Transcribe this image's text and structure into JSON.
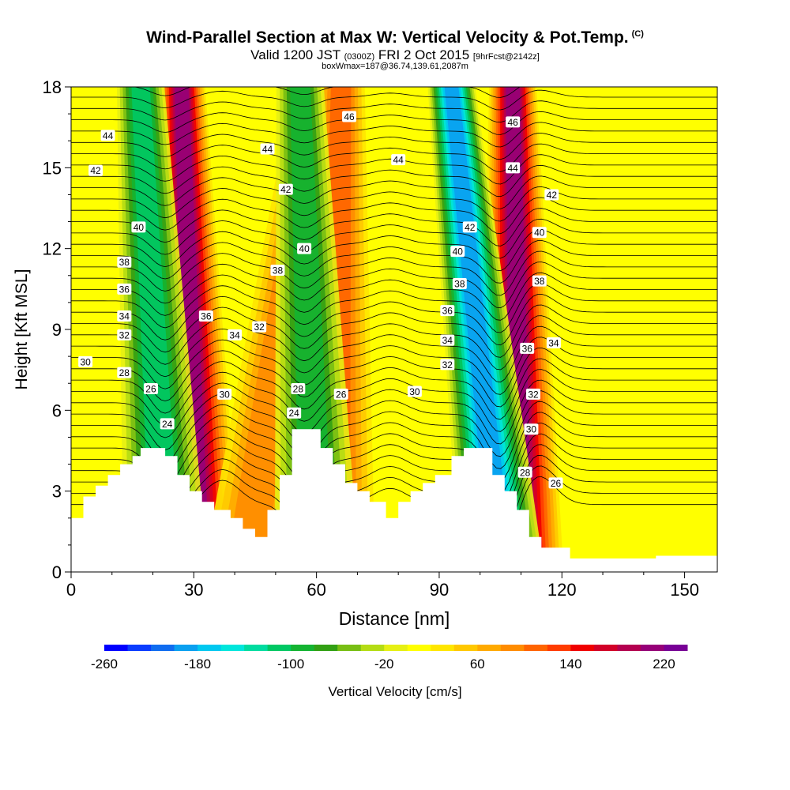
{
  "header": {
    "title": "Wind-Parallel Section at Max W: Vertical Velocity & Pot.Temp.",
    "copyright": "(C)",
    "valid_main": "Valid 1200 JST",
    "valid_z": "(0300Z)",
    "valid_date": "FRI 2 Oct 2015",
    "forecast": "[9hrFcst@2142z]",
    "box_info": "boxWmax=187@36.74,139.61,2087m"
  },
  "chart_data": {
    "type": "heatmap",
    "xlabel": "Distance [nm]",
    "ylabel": "Height [Kft MSL]",
    "x_ticks": [
      0,
      30,
      60,
      90,
      120,
      150
    ],
    "y_ticks": [
      0,
      3,
      6,
      9,
      12,
      15,
      18
    ],
    "xlim": [
      0,
      158
    ],
    "ylim": [
      0,
      18
    ],
    "colorbar": {
      "label": "Vertical Velocity [cm/s]",
      "ticks": [
        -260,
        -180,
        -100,
        -20,
        60,
        140,
        220
      ],
      "min": -260,
      "max": 240,
      "step": 20,
      "colors": [
        "#0000ff",
        "#0a3cff",
        "#0f6cf0",
        "#0aa0f0",
        "#00c8f0",
        "#00e6dc",
        "#00dca0",
        "#00c864",
        "#14b432",
        "#32a014",
        "#78be14",
        "#b4dc14",
        "#e6f014",
        "#ffff00",
        "#ffe600",
        "#ffc800",
        "#ffaa00",
        "#ff8c00",
        "#ff6400",
        "#ff3c00",
        "#f00000",
        "#d20028",
        "#b40050",
        "#960078",
        "#780096"
      ]
    },
    "terrain_kft": [
      [
        0,
        2.0
      ],
      [
        3,
        2.0
      ],
      [
        3,
        2.8
      ],
      [
        6,
        2.8
      ],
      [
        6,
        3.2
      ],
      [
        9,
        3.2
      ],
      [
        9,
        3.6
      ],
      [
        12,
        3.6
      ],
      [
        12,
        4.0
      ],
      [
        15,
        4.0
      ],
      [
        15,
        4.3
      ],
      [
        17,
        4.3
      ],
      [
        17,
        4.6
      ],
      [
        23,
        4.6
      ],
      [
        23,
        4.3
      ],
      [
        26,
        4.3
      ],
      [
        26,
        3.6
      ],
      [
        29,
        3.6
      ],
      [
        29,
        3.0
      ],
      [
        32,
        3.0
      ],
      [
        32,
        2.6
      ],
      [
        35,
        2.6
      ],
      [
        35,
        2.3
      ],
      [
        39,
        2.3
      ],
      [
        39,
        2.0
      ],
      [
        42,
        2.0
      ],
      [
        42,
        1.6
      ],
      [
        45,
        1.6
      ],
      [
        45,
        1.3
      ],
      [
        48,
        1.3
      ],
      [
        48,
        2.3
      ],
      [
        51,
        2.3
      ],
      [
        51,
        3.6
      ],
      [
        54,
        3.6
      ],
      [
        54,
        5.3
      ],
      [
        61,
        5.3
      ],
      [
        61,
        4.6
      ],
      [
        64,
        4.6
      ],
      [
        64,
        4.0
      ],
      [
        67,
        4.0
      ],
      [
        67,
        3.3
      ],
      [
        70,
        3.3
      ],
      [
        70,
        3.0
      ],
      [
        73,
        3.0
      ],
      [
        73,
        2.6
      ],
      [
        77,
        2.6
      ],
      [
        77,
        2.0
      ],
      [
        80,
        2.0
      ],
      [
        80,
        2.6
      ],
      [
        83,
        2.6
      ],
      [
        83,
        3.0
      ],
      [
        86,
        3.0
      ],
      [
        86,
        3.3
      ],
      [
        89,
        3.3
      ],
      [
        89,
        3.6
      ],
      [
        93,
        3.6
      ],
      [
        93,
        4.3
      ],
      [
        96,
        4.3
      ],
      [
        96,
        4.6
      ],
      [
        103,
        4.6
      ],
      [
        103,
        3.6
      ],
      [
        106,
        3.6
      ],
      [
        106,
        3.0
      ],
      [
        109,
        3.0
      ],
      [
        109,
        2.3
      ],
      [
        112,
        2.3
      ],
      [
        112,
        1.3
      ],
      [
        115,
        1.3
      ],
      [
        115,
        0.9
      ],
      [
        122,
        0.9
      ],
      [
        122,
        0.5
      ],
      [
        143,
        0.5
      ],
      [
        143,
        0.6
      ],
      [
        158,
        0.6
      ],
      [
        158,
        0
      ]
    ],
    "updraft_bands": [
      {
        "v_kind": "up",
        "bottom_x": 31,
        "top_x": 27,
        "w": 190
      },
      {
        "v_kind": "up",
        "bottom_x": 43,
        "top_x": 60,
        "w": 80
      },
      {
        "v_kind": "up",
        "bottom_x": 64,
        "top_x": 66,
        "w": 90
      },
      {
        "v_kind": "up",
        "bottom_x": 110,
        "top_x": 108,
        "w": 200
      },
      {
        "v_kind": "down",
        "bottom_x": 23,
        "top_x": 17,
        "w": -110
      },
      {
        "v_kind": "down",
        "bottom_x": 60,
        "top_x": 56,
        "w": -100
      },
      {
        "v_kind": "down",
        "bottom_x": 105,
        "top_x": 93,
        "w": -200
      }
    ],
    "theta_labels": [
      {
        "text": "44",
        "x": 9,
        "y": 16.2
      },
      {
        "text": "42",
        "x": 6,
        "y": 14.9
      },
      {
        "text": "40",
        "x": 16.5,
        "y": 12.8
      },
      {
        "text": "38",
        "x": 13,
        "y": 11.5
      },
      {
        "text": "36",
        "x": 13,
        "y": 10.5
      },
      {
        "text": "34",
        "x": 13,
        "y": 9.5
      },
      {
        "text": "32",
        "x": 13,
        "y": 8.8
      },
      {
        "text": "30",
        "x": 3.5,
        "y": 7.8
      },
      {
        "text": "28",
        "x": 13,
        "y": 7.4
      },
      {
        "text": "26",
        "x": 19.5,
        "y": 6.8
      },
      {
        "text": "24",
        "x": 23.5,
        "y": 5.5
      },
      {
        "text": "46",
        "x": 68,
        "y": 16.9
      },
      {
        "text": "44",
        "x": 48,
        "y": 15.7
      },
      {
        "text": "42",
        "x": 52.5,
        "y": 14.2
      },
      {
        "text": "40",
        "x": 57,
        "y": 12.0
      },
      {
        "text": "38",
        "x": 50.5,
        "y": 11.2
      },
      {
        "text": "36",
        "x": 33,
        "y": 9.5
      },
      {
        "text": "34",
        "x": 40,
        "y": 8.8
      },
      {
        "text": "32",
        "x": 46,
        "y": 9.1
      },
      {
        "text": "30",
        "x": 37.5,
        "y": 6.6
      },
      {
        "text": "28",
        "x": 55.5,
        "y": 6.8
      },
      {
        "text": "26",
        "x": 66,
        "y": 6.6
      },
      {
        "text": "24",
        "x": 54.5,
        "y": 5.9
      },
      {
        "text": "44",
        "x": 80,
        "y": 15.3
      },
      {
        "text": "30",
        "x": 84,
        "y": 6.7
      },
      {
        "text": "42",
        "x": 97.5,
        "y": 12.8
      },
      {
        "text": "40",
        "x": 94.5,
        "y": 11.9
      },
      {
        "text": "38",
        "x": 95,
        "y": 10.7
      },
      {
        "text": "36",
        "x": 92,
        "y": 9.7
      },
      {
        "text": "34",
        "x": 92,
        "y": 8.6
      },
      {
        "text": "32",
        "x": 92,
        "y": 7.7
      },
      {
        "text": "46",
        "x": 108,
        "y": 16.7
      },
      {
        "text": "44",
        "x": 108,
        "y": 15.0
      },
      {
        "text": "42",
        "x": 117.5,
        "y": 14.0
      },
      {
        "text": "40",
        "x": 114.5,
        "y": 12.6
      },
      {
        "text": "38",
        "x": 114.5,
        "y": 10.8
      },
      {
        "text": "36",
        "x": 111.5,
        "y": 8.3
      },
      {
        "text": "34",
        "x": 118,
        "y": 8.5
      },
      {
        "text": "32",
        "x": 113,
        "y": 6.6
      },
      {
        "text": "30",
        "x": 112.5,
        "y": 5.3
      },
      {
        "text": "28",
        "x": 111,
        "y": 3.7
      },
      {
        "text": "26",
        "x": 118.5,
        "y": 3.3
      }
    ]
  }
}
